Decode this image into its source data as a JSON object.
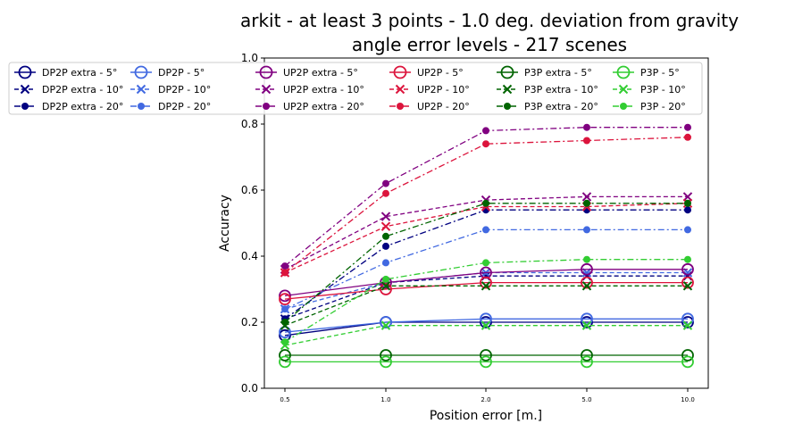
{
  "chart_data": {
    "type": "line",
    "title": "arkit - at least 3 points - 1.0 deg. deviation from gravity",
    "subtitle": "angle error levels - 217 scenes",
    "xlabel": "Position error [m.]",
    "ylabel": "Accuracy",
    "x": [
      "0.5",
      "1.0",
      "2.0",
      "5.0",
      "10.0"
    ],
    "xscale": "categorical",
    "ylim": [
      0.0,
      1.0
    ],
    "yticks": [
      "0.0",
      "0.2",
      "0.4",
      "0.6",
      "0.8",
      "1.0"
    ],
    "grid": false,
    "legend_position": "top, 6 columns",
    "series": [
      {
        "name": "DP2P extra - 5°",
        "color": "#000080",
        "linestyle": "solid",
        "marker": "open-circle",
        "values": [
          0.16,
          0.2,
          0.2,
          0.2,
          0.2
        ]
      },
      {
        "name": "DP2P extra - 10°",
        "color": "#000080",
        "linestyle": "dashed",
        "marker": "x",
        "values": [
          0.21,
          0.32,
          0.34,
          0.34,
          0.34
        ]
      },
      {
        "name": "DP2P extra - 20°",
        "color": "#000080",
        "linestyle": "dashdot",
        "marker": "dot",
        "values": [
          0.21,
          0.43,
          0.54,
          0.54,
          0.54
        ]
      },
      {
        "name": "DP2P - 5°",
        "color": "#4169e1",
        "linestyle": "solid",
        "marker": "open-circle",
        "values": [
          0.17,
          0.2,
          0.21,
          0.21,
          0.21
        ]
      },
      {
        "name": "DP2P - 10°",
        "color": "#4169e1",
        "linestyle": "dashed",
        "marker": "x",
        "values": [
          0.24,
          0.32,
          0.35,
          0.35,
          0.35
        ]
      },
      {
        "name": "DP2P - 20°",
        "color": "#4169e1",
        "linestyle": "dashdot",
        "marker": "dot",
        "values": [
          0.24,
          0.38,
          0.48,
          0.48,
          0.48
        ]
      },
      {
        "name": "UP2P extra - 5°",
        "color": "#800080",
        "linestyle": "solid",
        "marker": "open-circle",
        "values": [
          0.28,
          0.32,
          0.35,
          0.36,
          0.36
        ]
      },
      {
        "name": "UP2P extra - 10°",
        "color": "#800080",
        "linestyle": "dashed",
        "marker": "x",
        "values": [
          0.36,
          0.52,
          0.57,
          0.58,
          0.58
        ]
      },
      {
        "name": "UP2P extra - 20°",
        "color": "#800080",
        "linestyle": "dashdot",
        "marker": "dot",
        "values": [
          0.37,
          0.62,
          0.78,
          0.79,
          0.79
        ]
      },
      {
        "name": "UP2P - 5°",
        "color": "#dc143c",
        "linestyle": "solid",
        "marker": "open-circle",
        "values": [
          0.27,
          0.3,
          0.32,
          0.32,
          0.32
        ]
      },
      {
        "name": "UP2P - 10°",
        "color": "#dc143c",
        "linestyle": "dashed",
        "marker": "x",
        "values": [
          0.35,
          0.49,
          0.55,
          0.55,
          0.56
        ]
      },
      {
        "name": "UP2P - 20°",
        "color": "#dc143c",
        "linestyle": "dashdot",
        "marker": "dot",
        "values": [
          0.35,
          0.59,
          0.74,
          0.75,
          0.76
        ]
      },
      {
        "name": "P3P extra - 5°",
        "color": "#006400",
        "linestyle": "solid",
        "marker": "open-circle",
        "values": [
          0.1,
          0.1,
          0.1,
          0.1,
          0.1
        ]
      },
      {
        "name": "P3P extra - 10°",
        "color": "#006400",
        "linestyle": "dashed",
        "marker": "x",
        "values": [
          0.19,
          0.31,
          0.31,
          0.31,
          0.31
        ]
      },
      {
        "name": "P3P extra - 20°",
        "color": "#006400",
        "linestyle": "dashdot",
        "marker": "dot",
        "values": [
          0.2,
          0.46,
          0.56,
          0.56,
          0.56
        ]
      },
      {
        "name": "P3P - 5°",
        "color": "#32cd32",
        "linestyle": "solid",
        "marker": "open-circle",
        "values": [
          0.08,
          0.08,
          0.08,
          0.08,
          0.08
        ]
      },
      {
        "name": "P3P - 10°",
        "color": "#32cd32",
        "linestyle": "dashed",
        "marker": "x",
        "values": [
          0.13,
          0.19,
          0.19,
          0.19,
          0.19
        ]
      },
      {
        "name": "P3P - 20°",
        "color": "#32cd32",
        "linestyle": "dashdot",
        "marker": "dot",
        "values": [
          0.14,
          0.33,
          0.38,
          0.39,
          0.39
        ]
      }
    ]
  }
}
